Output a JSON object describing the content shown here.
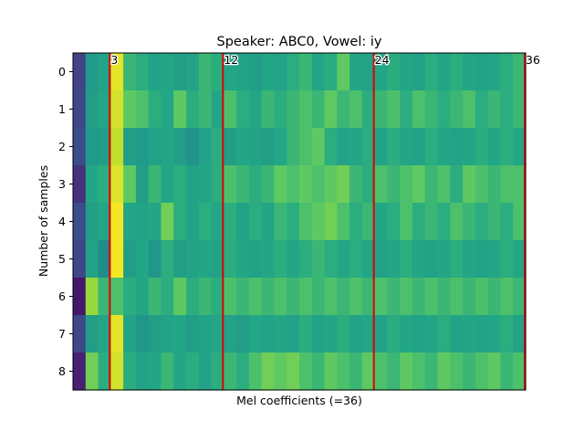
{
  "chart_data": {
    "type": "heatmap",
    "title": "Speaker: ABC0, Vowel: iy",
    "xlabel": "Mel coefficients (=36)",
    "ylabel": "Number of samples",
    "n_cols": 36,
    "y_ticks": [
      "0",
      "1",
      "2",
      "3",
      "4",
      "5",
      "6",
      "7",
      "8"
    ],
    "colormap": "viridis",
    "value_range": [
      0,
      1
    ],
    "values": [
      [
        0.25,
        0.68,
        0.72,
        0.97,
        0.78,
        0.76,
        0.72,
        0.74,
        0.7,
        0.72,
        0.78,
        0.76,
        0.74,
        0.72,
        0.7,
        0.74,
        0.72,
        0.76,
        0.78,
        0.74,
        0.76,
        0.82,
        0.74,
        0.72,
        0.74,
        0.76,
        0.74,
        0.72,
        0.76,
        0.74,
        0.76,
        0.74,
        0.72,
        0.74,
        0.76,
        0.78
      ],
      [
        0.28,
        0.7,
        0.74,
        0.95,
        0.82,
        0.8,
        0.76,
        0.74,
        0.82,
        0.76,
        0.78,
        0.74,
        0.8,
        0.76,
        0.74,
        0.78,
        0.76,
        0.78,
        0.8,
        0.78,
        0.82,
        0.78,
        0.8,
        0.76,
        0.78,
        0.8,
        0.76,
        0.8,
        0.78,
        0.76,
        0.78,
        0.8,
        0.76,
        0.78,
        0.76,
        0.78
      ],
      [
        0.3,
        0.68,
        0.7,
        0.93,
        0.7,
        0.68,
        0.72,
        0.74,
        0.7,
        0.64,
        0.72,
        0.76,
        0.7,
        0.74,
        0.72,
        0.7,
        0.74,
        0.78,
        0.8,
        0.82,
        0.76,
        0.72,
        0.74,
        0.76,
        0.72,
        0.76,
        0.74,
        0.72,
        0.76,
        0.74,
        0.72,
        0.74,
        0.76,
        0.74,
        0.76,
        0.74
      ],
      [
        0.18,
        0.74,
        0.76,
        0.96,
        0.82,
        0.7,
        0.78,
        0.74,
        0.76,
        0.72,
        0.74,
        0.76,
        0.8,
        0.78,
        0.76,
        0.78,
        0.82,
        0.8,
        0.82,
        0.8,
        0.82,
        0.84,
        0.78,
        0.76,
        0.8,
        0.78,
        0.8,
        0.82,
        0.78,
        0.8,
        0.76,
        0.82,
        0.8,
        0.78,
        0.8,
        0.8
      ],
      [
        0.3,
        0.7,
        0.74,
        0.99,
        0.74,
        0.72,
        0.74,
        0.84,
        0.76,
        0.72,
        0.76,
        0.74,
        0.76,
        0.72,
        0.76,
        0.74,
        0.78,
        0.76,
        0.8,
        0.82,
        0.84,
        0.8,
        0.76,
        0.78,
        0.74,
        0.76,
        0.8,
        0.76,
        0.78,
        0.76,
        0.8,
        0.78,
        0.76,
        0.78,
        0.76,
        0.8
      ],
      [
        0.26,
        0.72,
        0.6,
        0.99,
        0.7,
        0.74,
        0.66,
        0.76,
        0.7,
        0.72,
        0.74,
        0.72,
        0.76,
        0.74,
        0.72,
        0.74,
        0.76,
        0.74,
        0.76,
        0.78,
        0.76,
        0.74,
        0.76,
        0.74,
        0.72,
        0.74,
        0.76,
        0.74,
        0.72,
        0.74,
        0.76,
        0.74,
        0.72,
        0.74,
        0.76,
        0.74
      ],
      [
        0.08,
        0.88,
        0.78,
        0.8,
        0.76,
        0.74,
        0.78,
        0.76,
        0.82,
        0.76,
        0.78,
        0.76,
        0.8,
        0.78,
        0.8,
        0.78,
        0.8,
        0.78,
        0.8,
        0.78,
        0.8,
        0.78,
        0.8,
        0.78,
        0.8,
        0.78,
        0.8,
        0.78,
        0.8,
        0.78,
        0.8,
        0.78,
        0.8,
        0.78,
        0.8,
        0.78
      ],
      [
        0.28,
        0.7,
        0.74,
        0.97,
        0.72,
        0.66,
        0.7,
        0.72,
        0.74,
        0.7,
        0.72,
        0.74,
        0.72,
        0.7,
        0.74,
        0.72,
        0.74,
        0.72,
        0.76,
        0.72,
        0.74,
        0.76,
        0.72,
        0.74,
        0.72,
        0.76,
        0.74,
        0.72,
        0.74,
        0.76,
        0.72,
        0.74,
        0.72,
        0.74,
        0.76,
        0.72
      ],
      [
        0.12,
        0.84,
        0.76,
        0.95,
        0.76,
        0.72,
        0.74,
        0.78,
        0.74,
        0.76,
        0.72,
        0.76,
        0.78,
        0.76,
        0.8,
        0.84,
        0.82,
        0.84,
        0.8,
        0.78,
        0.82,
        0.8,
        0.78,
        0.82,
        0.8,
        0.78,
        0.82,
        0.8,
        0.78,
        0.82,
        0.8,
        0.78,
        0.8,
        0.82,
        0.78,
        0.8
      ]
    ],
    "markers": [
      {
        "col": 3,
        "label": "3"
      },
      {
        "col": 12,
        "label": "12"
      },
      {
        "col": 24,
        "label": "24"
      },
      {
        "col": 36,
        "label": "36"
      }
    ],
    "marker_color": "#e00000",
    "axis_color": "#000000"
  }
}
